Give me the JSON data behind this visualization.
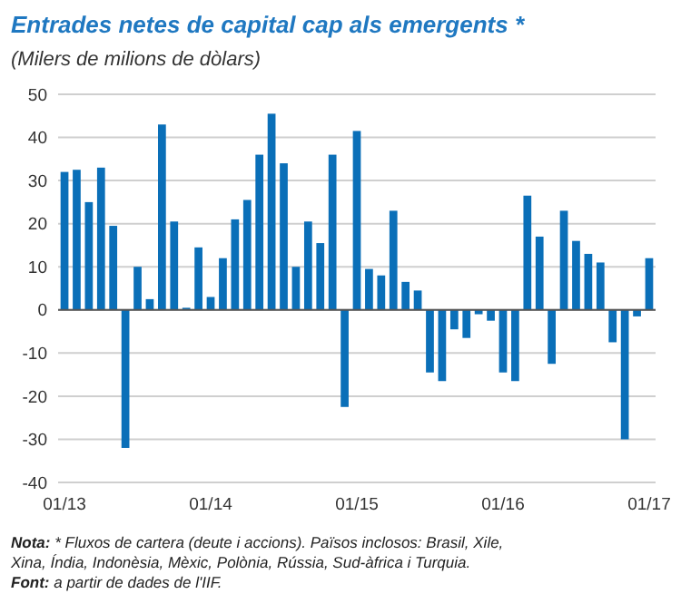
{
  "chart_data": {
    "type": "bar",
    "title": "Entrades netes de capital cap als emergents *",
    "subtitle": "(Milers de milions de dòlars)",
    "categories": [
      "01/13",
      null,
      null,
      null,
      null,
      null,
      null,
      null,
      null,
      null,
      null,
      null,
      "01/14",
      null,
      null,
      null,
      null,
      null,
      null,
      null,
      null,
      null,
      null,
      null,
      "01/15",
      null,
      null,
      null,
      null,
      null,
      null,
      null,
      null,
      null,
      null,
      null,
      "01/16",
      null,
      null,
      null,
      null,
      null,
      null,
      null,
      null,
      null,
      null,
      null,
      "01/17"
    ],
    "values": [
      32,
      32.5,
      25,
      33,
      19.5,
      -32,
      10,
      2.5,
      43,
      20.5,
      0.5,
      14.5,
      3,
      12,
      21,
      25.5,
      36,
      45.5,
      34,
      10,
      20.5,
      15.5,
      36,
      -22.5,
      41.5,
      9.5,
      8,
      23,
      6.5,
      4.5,
      -14.5,
      -16.5,
      -4.5,
      -6.5,
      -1,
      -2.5,
      -14.5,
      -16.5,
      26.5,
      17,
      -12.5,
      23,
      16,
      13,
      11,
      -7.5,
      -30,
      -1.5,
      12
    ],
    "color": "#0a6fb8",
    "ylim": [
      -40,
      50
    ],
    "yticks": [
      -40,
      -30,
      -20,
      -10,
      0,
      10,
      20,
      30,
      40,
      50
    ],
    "grid": "y",
    "annotations": [
      "Nota: * Fluxos de cartera (deute i accions). Països inclosos: Brasil, Xile, Xina, Índia, Indonèsia, Mèxic, Polònia, Rússia, Sud-àfrica i Turquia.",
      "Font: a partir de dades de l'IIF."
    ]
  }
}
